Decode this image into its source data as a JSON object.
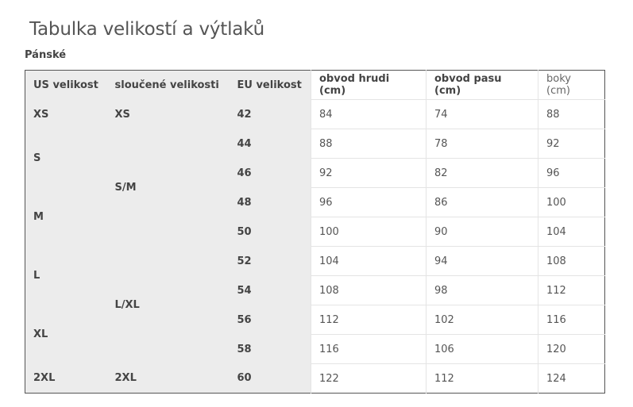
{
  "page": {
    "title": "Tabulka velikostí a výtlaků",
    "section": "Pánské"
  },
  "table": {
    "headers": [
      "US velikost",
      "sloučené velikosti",
      "EU velikost",
      "obvod hrudi (cm)",
      "obvod pasu (cm)",
      "boky (cm)"
    ],
    "us_sizes": [
      "XS",
      "S",
      "M",
      "L",
      "XL",
      "2XL"
    ],
    "combined_sizes": [
      "XS",
      "S/M",
      "L/XL",
      "2XL"
    ],
    "rows": [
      {
        "eu": "42",
        "chest": "84",
        "waist": "74",
        "hips": "88"
      },
      {
        "eu": "44",
        "chest": "88",
        "waist": "78",
        "hips": "92"
      },
      {
        "eu": "46",
        "chest": "92",
        "waist": "82",
        "hips": "96"
      },
      {
        "eu": "48",
        "chest": "96",
        "waist": "86",
        "hips": "100"
      },
      {
        "eu": "50",
        "chest": "100",
        "waist": "90",
        "hips": "104"
      },
      {
        "eu": "52",
        "chest": "104",
        "waist": "94",
        "hips": "108"
      },
      {
        "eu": "54",
        "chest": "108",
        "waist": "98",
        "hips": "112"
      },
      {
        "eu": "56",
        "chest": "112",
        "waist": "102",
        "hips": "116"
      },
      {
        "eu": "58",
        "chest": "116",
        "waist": "106",
        "hips": "120"
      },
      {
        "eu": "60",
        "chest": "122",
        "waist": "112",
        "hips": "124"
      }
    ]
  }
}
